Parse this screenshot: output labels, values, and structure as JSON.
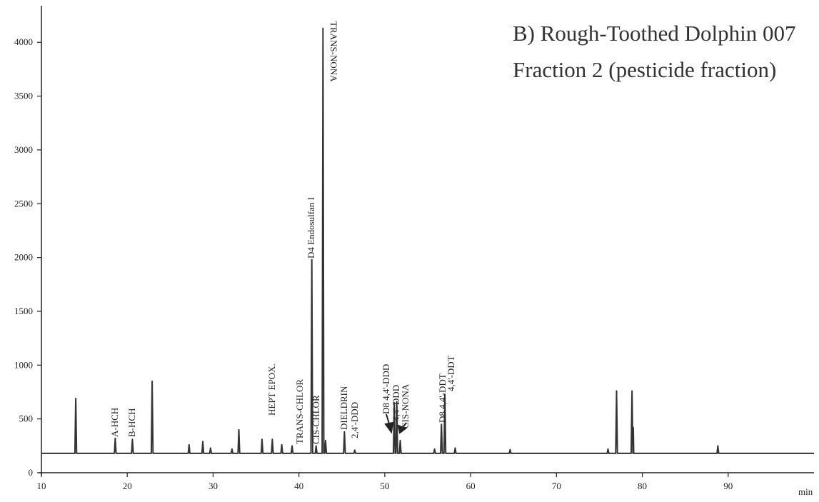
{
  "chart_data": {
    "type": "line",
    "title": "B) Rough-Toothed Dolphin 007",
    "subtitle": "Fraction 2 (pesticide fraction)",
    "x_label": "min",
    "xlim": [
      10,
      100
    ],
    "xticks": [
      10,
      20,
      30,
      40,
      50,
      60,
      70,
      80,
      90
    ],
    "ylim": [
      0,
      4340
    ],
    "yticks": [
      0,
      500,
      1000,
      1500,
      2000,
      2500,
      3000,
      3500,
      4000
    ],
    "color": "#333333",
    "x": [
      10,
      13.9,
      14.0,
      14.1,
      18.5,
      18.6,
      18.7,
      20.5,
      20.6,
      20.7,
      22.8,
      22.9,
      23.0,
      27.1,
      27.2,
      27.3,
      28.7,
      28.8,
      28.9,
      29.6,
      29.7,
      29.8,
      32.1,
      32.2,
      32.3,
      32.9,
      33.0,
      33.1,
      35.6,
      35.7,
      35.8,
      36.8,
      36.9,
      37.0,
      37.9,
      38.0,
      38.1,
      39.1,
      39.2,
      39.3,
      41.4,
      41.5,
      41.6,
      41.9,
      42.0,
      42.1,
      42.7,
      42.8,
      42.9,
      43.0,
      43.1,
      43.2,
      45.2,
      45.3,
      45.4,
      46.4,
      46.5,
      46.6,
      51.0,
      51.1,
      51.2,
      51.3,
      51.4,
      51.5,
      51.7,
      51.8,
      51.9,
      55.7,
      55.8,
      55.9,
      56.5,
      56.6,
      56.7,
      56.9,
      57.0,
      57.1,
      58.1,
      58.2,
      58.3,
      64.5,
      64.6,
      64.7,
      75.9,
      76.0,
      76.1,
      76.9,
      77.0,
      77.1,
      78.7,
      78.8,
      78.9,
      78.95,
      79.0,
      88.7,
      88.8,
      88.9,
      100
    ],
    "values": [
      180,
      180,
      690,
      180,
      180,
      320,
      180,
      180,
      310,
      180,
      180,
      850,
      180,
      180,
      260,
      180,
      180,
      290,
      180,
      180,
      230,
      180,
      180,
      220,
      180,
      180,
      400,
      180,
      180,
      310,
      180,
      180,
      310,
      180,
      180,
      260,
      180,
      180,
      250,
      180,
      180,
      1980,
      180,
      180,
      250,
      180,
      180,
      4130,
      180,
      180,
      300,
      180,
      180,
      380,
      180,
      180,
      210,
      180,
      180,
      650,
      180,
      180,
      660,
      180,
      180,
      300,
      180,
      180,
      220,
      180,
      180,
      450,
      180,
      180,
      730,
      180,
      180,
      230,
      180,
      180,
      215,
      180,
      180,
      220,
      180,
      180,
      760,
      180,
      180,
      760,
      180,
      420,
      180,
      180,
      250,
      180,
      180
    ],
    "annotations": [
      "A-HCH",
      "B-HCH",
      "HEPT EPOX.",
      "TRANS-CHLOR",
      "CIS-CHLOR",
      "D4 Endosulfan I",
      "TRANS-NONA",
      "DIELDRIN",
      "2,4'-DDD",
      "D8 4,4'-DDD",
      "4,4'-DDD",
      "CIS-NONA",
      "D8 4,4'-DDT",
      "4,4'-DDT"
    ]
  }
}
